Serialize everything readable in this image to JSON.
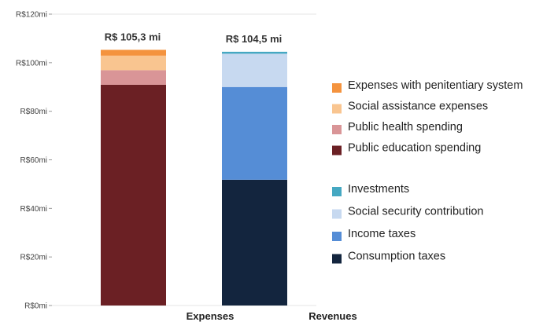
{
  "chart_data": {
    "type": "bar",
    "stacked": true,
    "categories": [
      "Expenses",
      "Revenues"
    ],
    "ylim": [
      0,
      120
    ],
    "yticks": [
      {
        "value": 0,
        "label": "R$0mi"
      },
      {
        "value": 20,
        "label": "R$20mi"
      },
      {
        "value": 40,
        "label": "R$40mi"
      },
      {
        "value": 60,
        "label": "R$60mi"
      },
      {
        "value": 80,
        "label": "R$80mi"
      },
      {
        "value": 100,
        "label": "R$100mi"
      },
      {
        "value": 120,
        "label": "R$120mi"
      }
    ],
    "totals": [
      "R$ 105,3 mi",
      "R$ 104,5 mi"
    ],
    "series": [
      {
        "name": "Public education spending",
        "color": "#6b2024",
        "values": [
          90.9,
          0
        ]
      },
      {
        "name": "Public health spending",
        "color": "#d99597",
        "values": [
          6.0,
          0
        ]
      },
      {
        "name": "Social assistance expenses",
        "color": "#f9c590",
        "values": [
          6.0,
          0
        ]
      },
      {
        "name": "Expenses with penitentiary system",
        "color": "#f4933e",
        "values": [
          2.4,
          0
        ]
      },
      {
        "name": "Consumption taxes",
        "color": "#13253e",
        "values": [
          0,
          51.8
        ]
      },
      {
        "name": "Income taxes",
        "color": "#558dd6",
        "values": [
          0,
          38.2
        ]
      },
      {
        "name": "Social security contribution",
        "color": "#c7d9f0",
        "values": [
          0,
          13.7
        ]
      },
      {
        "name": "Investments",
        "color": "#45a8c2",
        "values": [
          0,
          0.8
        ]
      }
    ],
    "legend": {
      "placement": "right",
      "groups": [
        [
          "Expenses with penitentiary system",
          "Social assistance expenses",
          "Public health spending",
          "Public education spending"
        ],
        [
          "Investments",
          "Social security contribution",
          "Income taxes",
          "Consumption taxes"
        ]
      ]
    },
    "grid": false
  }
}
